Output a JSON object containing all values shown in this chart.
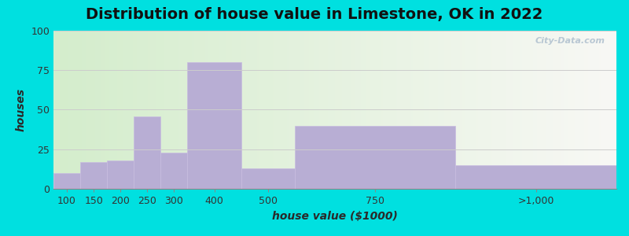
{
  "title": "Distribution of house value in Limestone, OK in 2022",
  "xlabel": "house value ($1000)",
  "ylabel": "houses",
  "bar_color": "#b8aed4",
  "bar_edgecolor": "#c8bce0",
  "background_outer": "#00e0e0",
  "background_plot_left": "#d4edcc",
  "background_plot_right": "#f5f5f5",
  "ylim": [
    0,
    100
  ],
  "yticks": [
    0,
    25,
    50,
    75,
    100
  ],
  "categories": [
    "100",
    "150",
    "200",
    "250",
    "300",
    "400",
    "500",
    "750",
    ">1,000"
  ],
  "values": [
    10,
    17,
    18,
    46,
    23,
    80,
    13,
    40,
    15
  ],
  "bin_left": [
    100,
    150,
    200,
    250,
    300,
    350,
    450,
    550,
    850
  ],
  "bin_right": [
    150,
    200,
    250,
    300,
    350,
    450,
    550,
    850,
    1150
  ],
  "title_fontsize": 14,
  "axis_label_fontsize": 10,
  "tick_fontsize": 9
}
